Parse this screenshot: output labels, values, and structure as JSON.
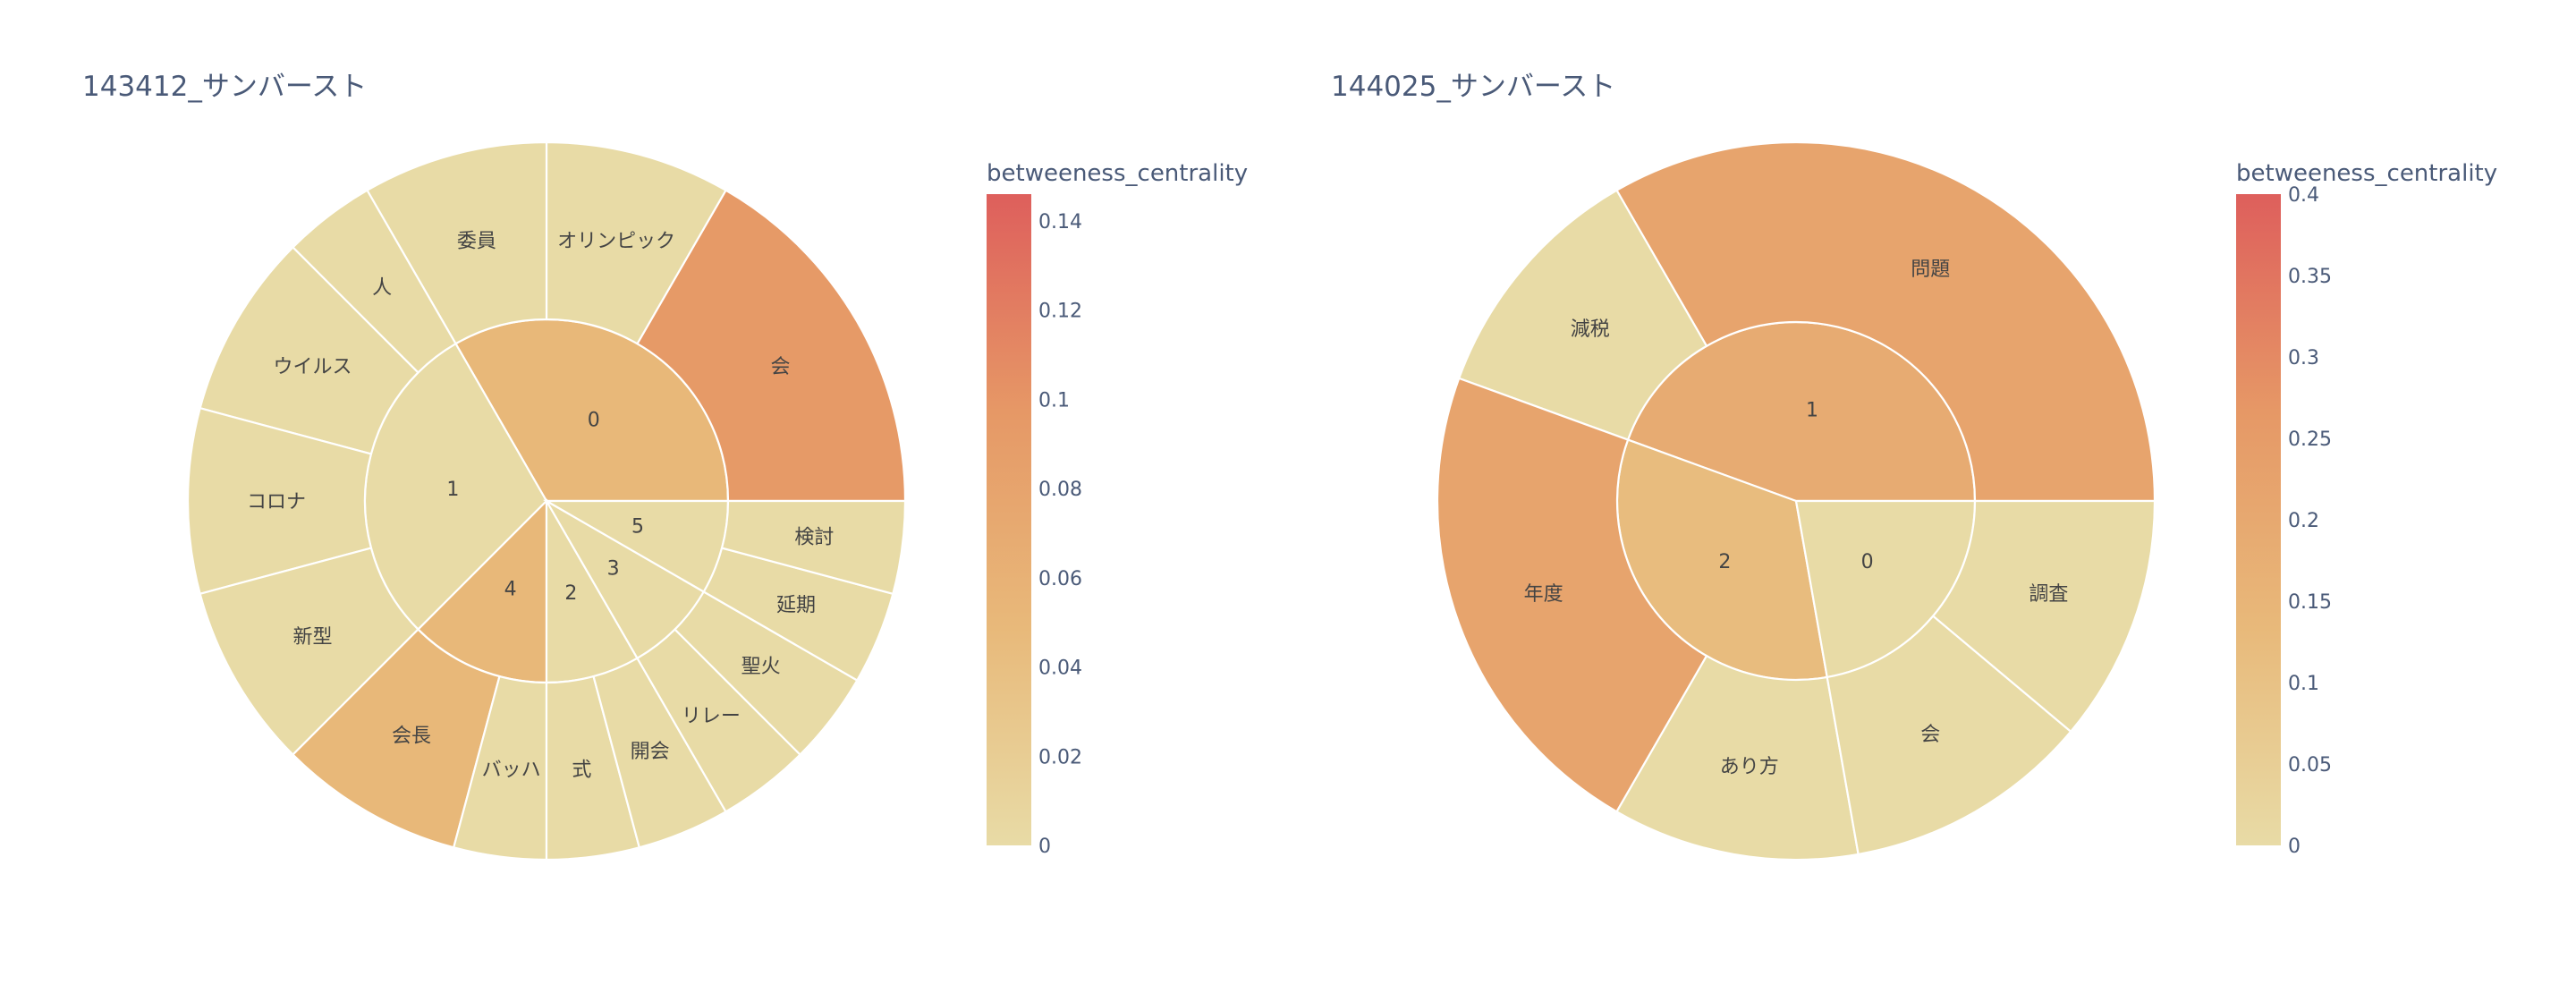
{
  "charts": [
    {
      "title": "143412_サンバースト",
      "colorbar": {
        "title": "betweeness_centrality",
        "min": 0,
        "max": 0.146,
        "ticks": [
          0,
          0.02,
          0.04,
          0.06,
          0.08,
          0.1,
          0.12,
          0.14
        ],
        "tick_labels": [
          "0",
          "0.02",
          "0.04",
          "0.06",
          "0.08",
          "0.1",
          "0.12",
          "0.14"
        ]
      }
    },
    {
      "title": "144025_サンバースト",
      "colorbar": {
        "title": "betweeness_centrality",
        "min": 0,
        "max": 0.4,
        "ticks": [
          0,
          0.05,
          0.1,
          0.15,
          0.2,
          0.25,
          0.3,
          0.35,
          0.4
        ],
        "tick_labels": [
          "0",
          "0.05",
          "0.1",
          "0.15",
          "0.2",
          "0.25",
          "0.3",
          "0.35",
          "0.4"
        ]
      }
    }
  ],
  "chart_data": [
    {
      "type": "sunburst",
      "title": "143412_サンバースト",
      "color_metric": "betweeness_centrality",
      "colorscale": [
        "#e8dba6",
        "#e8b97a",
        "#e69866",
        "#de5f5c"
      ],
      "groups": [
        {
          "label": "0",
          "color_value": 0.05,
          "children": [
            {
              "label": "会",
              "value": 8.0,
              "color_value": 0.095
            },
            {
              "label": "オリンピック",
              "value": 4.0,
              "color_value": 0.0
            },
            {
              "label": "委員",
              "value": 4.0,
              "color_value": 0.0
            }
          ]
        },
        {
          "label": "1",
          "color_value": 0.0,
          "children": [
            {
              "label": "人",
              "value": 2.0,
              "color_value": 0.0
            },
            {
              "label": "ウイルス",
              "value": 4.0,
              "color_value": 0.0
            },
            {
              "label": "コロナ",
              "value": 4.0,
              "color_value": 0.0
            },
            {
              "label": "新型",
              "value": 4.0,
              "color_value": 0.0
            }
          ]
        },
        {
          "label": "4",
          "color_value": 0.05,
          "children": [
            {
              "label": "会長",
              "value": 4.0,
              "color_value": 0.05
            },
            {
              "label": "バッハ",
              "value": 2.0,
              "color_value": 0.0
            }
          ]
        },
        {
          "label": "2",
          "color_value": 0.0,
          "children": [
            {
              "label": "式",
              "value": 2.0,
              "color_value": 0.0
            },
            {
              "label": "開会",
              "value": 2.0,
              "color_value": 0.0
            }
          ]
        },
        {
          "label": "3",
          "color_value": 0.0,
          "children": [
            {
              "label": "リレー",
              "value": 2.0,
              "color_value": 0.0
            },
            {
              "label": "聖火",
              "value": 2.0,
              "color_value": 0.0
            }
          ]
        },
        {
          "label": "5",
          "color_value": 0.0,
          "children": [
            {
              "label": "延期",
              "value": 2.0,
              "color_value": 0.0
            },
            {
              "label": "検討",
              "value": 2.0,
              "color_value": 0.0
            }
          ]
        }
      ]
    },
    {
      "type": "sunburst",
      "title": "144025_サンバースト",
      "color_metric": "betweeness_centrality",
      "colorscale": [
        "#e8dba6",
        "#e8b97a",
        "#e69866",
        "#de5f5c"
      ],
      "groups": [
        {
          "label": "1",
          "color_value": 0.19,
          "children": [
            {
              "label": "問題",
              "value": 3,
              "color_value": 0.22
            },
            {
              "label": "減税",
              "value": 1,
              "color_value": 0.0
            }
          ]
        },
        {
          "label": "2",
          "color_value": 0.12,
          "children": [
            {
              "label": "年度",
              "value": 2,
              "color_value": 0.22
            },
            {
              "label": "あり方",
              "value": 1,
              "color_value": 0.0
            }
          ]
        },
        {
          "label": "0",
          "color_value": 0.0,
          "children": [
            {
              "label": "会",
              "value": 1,
              "color_value": 0.0
            },
            {
              "label": "調査",
              "value": 1,
              "color_value": 0.0
            }
          ]
        }
      ]
    }
  ]
}
